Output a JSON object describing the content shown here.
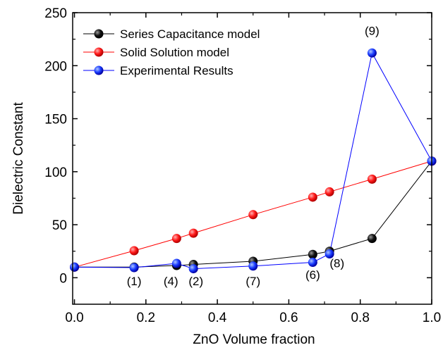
{
  "chart_data": {
    "type": "line",
    "xlabel": "ZnO Volume fraction",
    "ylabel": "Dielectric Constant",
    "xlim": [
      -0.005,
      1.0
    ],
    "ylim": [
      -25,
      250
    ],
    "xticks": [
      0.0,
      0.2,
      0.4,
      0.6,
      0.8,
      1.0
    ],
    "xtick_labels": [
      "0.0",
      "0.2",
      "0.4",
      "0.6",
      "0.8",
      "1.0"
    ],
    "yticks": [
      0,
      50,
      100,
      150,
      200,
      250
    ],
    "ytick_labels": [
      "0",
      "50",
      "100",
      "150",
      "200",
      "250"
    ],
    "legend_position": "top-left",
    "series": [
      {
        "name": "Series Capacitance model",
        "color": "#000000",
        "x": [
          0.0,
          0.167,
          0.286,
          0.333,
          0.5,
          0.667,
          0.714,
          0.833,
          1.0
        ],
        "y": [
          10,
          10,
          11.5,
          12.5,
          15.5,
          22,
          25,
          37,
          110
        ]
      },
      {
        "name": "Solid Solution model",
        "color": "#ff0000",
        "x": [
          0.0,
          0.167,
          0.286,
          0.333,
          0.5,
          0.667,
          0.714,
          0.833,
          1.0
        ],
        "y": [
          10,
          25.5,
          37,
          42,
          59.5,
          76,
          81,
          93,
          110
        ]
      },
      {
        "name": "Experimental Results",
        "color": "#0000ff",
        "x": [
          0.0,
          0.167,
          0.286,
          0.333,
          0.5,
          0.667,
          0.714,
          0.833,
          1.0
        ],
        "y": [
          10,
          9.5,
          13.5,
          8.5,
          11,
          14.5,
          22.5,
          212,
          110
        ]
      }
    ],
    "annotations": [
      {
        "text": "(1)",
        "x": 0.167,
        "y": -7
      },
      {
        "text": "(4)",
        "x": 0.27,
        "y": -7
      },
      {
        "text": "(2)",
        "x": 0.34,
        "y": -7
      },
      {
        "text": "(7)",
        "x": 0.5,
        "y": -7
      },
      {
        "text": "(6)",
        "x": 0.667,
        "y": -1
      },
      {
        "text": "(8)",
        "x": 0.735,
        "y": 10
      },
      {
        "text": "(9)",
        "x": 0.833,
        "y": 229
      }
    ]
  }
}
